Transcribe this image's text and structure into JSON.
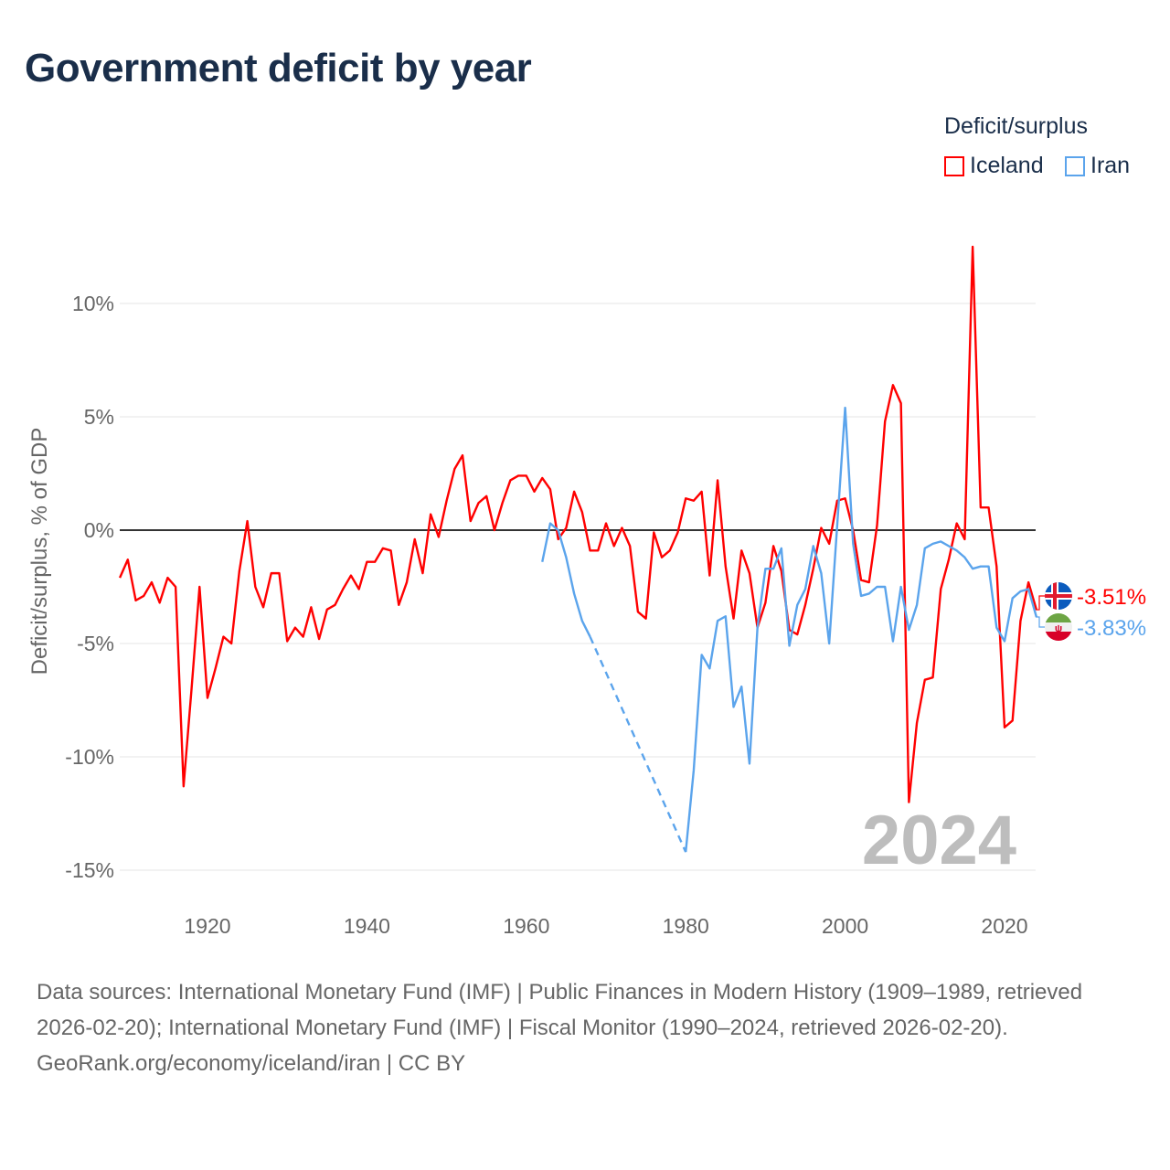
{
  "title": "Government deficit by year",
  "legend": {
    "title": "Deficit/surplus",
    "items": [
      {
        "name": "Iceland",
        "color": "#ff0000"
      },
      {
        "name": "Iran",
        "color": "#5ba4ec"
      }
    ]
  },
  "footer": {
    "sources": "Data sources: International Monetary Fund (IMF) | Public Finances in Modern History (1909–1989, retrieved 2026-02-20); International Monetary Fund (IMF) | Fiscal Monitor (1990–2024, retrieved 2026-02-20).",
    "credit": "GeoRank.org/economy/iceland/iran | CC BY"
  },
  "chart_data": {
    "type": "line",
    "title": "Government deficit by year",
    "xlabel": "",
    "ylabel": "Deficit/surplus, % of GDP",
    "xlim": [
      1909,
      2024
    ],
    "ylim": [
      -16,
      13
    ],
    "yticks": [
      10,
      5,
      0,
      -5,
      -10,
      -15
    ],
    "ytick_labels": [
      "10%",
      "5%",
      "0%",
      "-5%",
      "-10%",
      "-15%"
    ],
    "xticks": [
      1920,
      1940,
      1960,
      1980,
      2000,
      2020
    ],
    "xtick_labels": [
      "1920",
      "1940",
      "1960",
      "1980",
      "2000",
      "2020"
    ],
    "grid": true,
    "current_year": "2024",
    "legend_position": "top-right",
    "series": [
      {
        "name": "Iceland",
        "color": "#ff0000",
        "end_label": "-3.51%",
        "flag": "iceland-flag",
        "start_year": 1909,
        "values": [
          -2.1,
          -1.3,
          -3.1,
          -2.9,
          -2.3,
          -3.2,
          -2.1,
          -2.5,
          -11.3,
          -7.0,
          -2.5,
          -7.4,
          -6.1,
          -4.7,
          -5.0,
          -1.8,
          0.4,
          -2.5,
          -3.4,
          -1.9,
          -1.9,
          -4.9,
          -4.3,
          -4.7,
          -3.4,
          -4.8,
          -3.5,
          -3.3,
          -2.6,
          -2.0,
          -2.6,
          -1.4,
          -1.4,
          -0.8,
          -0.9,
          -3.3,
          -2.3,
          -0.4,
          -1.9,
          0.7,
          -0.3,
          1.3,
          2.7,
          3.3,
          0.4,
          1.2,
          1.5,
          0.0,
          1.2,
          2.2,
          2.4,
          2.4,
          1.7,
          2.3,
          1.8,
          -0.4,
          0.1,
          1.7,
          0.8,
          -0.9,
          -0.9,
          0.3,
          -0.7,
          0.1,
          -0.7,
          -3.6,
          -3.9,
          -0.1,
          -1.2,
          -0.9,
          -0.1,
          1.4,
          1.3,
          1.7,
          -2.0,
          2.2,
          -1.6,
          -3.9,
          -0.9,
          -1.9,
          -4.3,
          -3.2,
          -0.7,
          -1.8,
          -4.4,
          -4.6,
          -3.3,
          -1.7,
          0.1,
          -0.6,
          1.3,
          1.4,
          0.0,
          -2.2,
          -2.3,
          0.2,
          4.8,
          6.4,
          5.6,
          -12.0,
          -8.5,
          -6.6,
          -6.5,
          -2.6,
          -1.3,
          0.3,
          -0.4,
          12.5,
          1.0,
          1.0,
          -1.6,
          -8.7,
          -8.4,
          -4.0,
          -2.3,
          -3.51
        ]
      },
      {
        "name": "Iran",
        "color": "#5ba4ec",
        "end_label": "-3.83%",
        "flag": "iran-flag",
        "start_year": 1962,
        "values": [
          -1.4,
          0.3,
          0.0,
          -1.2,
          -2.8,
          -4.0,
          -4.7,
          null,
          null,
          null,
          null,
          null,
          null,
          null,
          null,
          null,
          null,
          null,
          -14.2,
          -10.6,
          -5.5,
          -6.1,
          -4.0,
          -3.8,
          -7.8,
          -6.9,
          -10.3,
          -4.3,
          -1.7,
          -1.7,
          -0.8,
          -5.1,
          -3.3,
          -2.6,
          -0.7,
          -1.9,
          -5.0,
          0.2,
          5.4,
          -0.6,
          -2.9,
          -2.8,
          -2.5,
          -2.5,
          -4.9,
          -2.5,
          -4.4,
          -3.3,
          -0.8,
          -0.6,
          -0.5,
          -0.7,
          -0.9,
          -1.2,
          -1.7,
          -1.6,
          -1.6,
          -4.3,
          -4.9,
          -3.0,
          -2.7,
          -2.6,
          -3.83
        ]
      }
    ]
  }
}
